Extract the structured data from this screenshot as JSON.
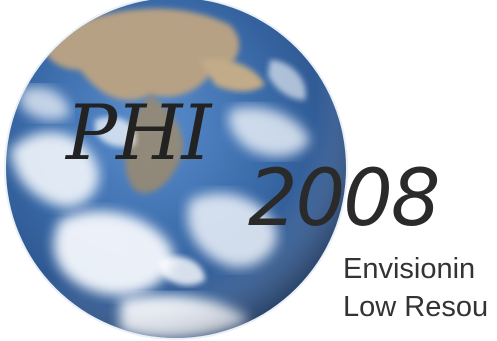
{
  "logo": {
    "acronym": "PHI",
    "year": "2008"
  },
  "tagline": {
    "line1": "Envisionin",
    "line2": "Low Resou"
  },
  "colors": {
    "ocean": "#3f73b0",
    "cloud": "#f2f6fb",
    "land": "#b49a78",
    "text": "#222222"
  },
  "icons": {
    "globe": "earth-globe-image"
  }
}
